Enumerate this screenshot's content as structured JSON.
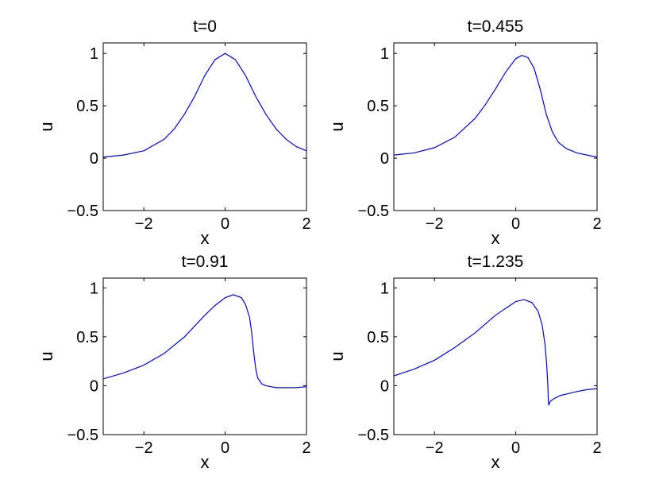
{
  "chart_data": [
    {
      "type": "line",
      "title": "t=0",
      "xlabel": "x",
      "ylabel": "u",
      "xlim": [
        -3,
        2
      ],
      "ylim": [
        -0.5,
        1.1
      ],
      "xticks": [
        -2,
        0,
        2
      ],
      "yticks": [
        -0.5,
        0,
        0.5,
        1
      ],
      "xtick_labels": [
        "−2",
        "0",
        "2"
      ],
      "ytick_labels": [
        "−0.5",
        "0",
        "0.5",
        "1"
      ],
      "grid": false,
      "series": [
        {
          "color": "#0000ff",
          "x": [
            -3.0,
            -2.5,
            -2.0,
            -1.5,
            -1.25,
            -1.0,
            -0.75,
            -0.5,
            -0.25,
            0.0,
            0.25,
            0.5,
            0.75,
            1.0,
            1.25,
            1.5,
            1.75,
            2.0
          ],
          "y": [
            0.01,
            0.03,
            0.07,
            0.18,
            0.28,
            0.42,
            0.59,
            0.79,
            0.94,
            1.0,
            0.94,
            0.79,
            0.59,
            0.42,
            0.28,
            0.18,
            0.11,
            0.07
          ]
        }
      ]
    },
    {
      "type": "line",
      "title": "t=0.455",
      "xlabel": "x",
      "ylabel": "u",
      "xlim": [
        -3,
        2
      ],
      "ylim": [
        -0.5,
        1.1
      ],
      "xticks": [
        -2,
        0,
        2
      ],
      "yticks": [
        -0.5,
        0,
        0.5,
        1
      ],
      "xtick_labels": [
        "−2",
        "0",
        "2"
      ],
      "ytick_labels": [
        "−0.5",
        "0",
        "0.5",
        "1"
      ],
      "grid": false,
      "series": [
        {
          "color": "#0000ff",
          "x": [
            -3.0,
            -2.5,
            -2.0,
            -1.5,
            -1.0,
            -0.75,
            -0.5,
            -0.25,
            0.0,
            0.15,
            0.3,
            0.45,
            0.6,
            0.75,
            0.9,
            1.05,
            1.25,
            1.5,
            1.75,
            2.0
          ],
          "y": [
            0.03,
            0.05,
            0.1,
            0.2,
            0.38,
            0.51,
            0.66,
            0.82,
            0.95,
            0.98,
            0.96,
            0.86,
            0.66,
            0.42,
            0.25,
            0.15,
            0.09,
            0.05,
            0.03,
            0.01
          ]
        }
      ]
    },
    {
      "type": "line",
      "title": "t=0.91",
      "xlabel": "x",
      "ylabel": "u",
      "xlim": [
        -3,
        2
      ],
      "ylim": [
        -0.5,
        1.1
      ],
      "xticks": [
        -2,
        0,
        2
      ],
      "yticks": [
        -0.5,
        0,
        0.5,
        1
      ],
      "xtick_labels": [
        "−2",
        "0",
        "2"
      ],
      "ytick_labels": [
        "−0.5",
        "0",
        "0.5",
        "1"
      ],
      "grid": false,
      "series": [
        {
          "color": "#0000ff",
          "x": [
            -3.0,
            -2.5,
            -2.0,
            -1.5,
            -1.0,
            -0.5,
            -0.25,
            0.0,
            0.2,
            0.4,
            0.5,
            0.6,
            0.65,
            0.7,
            0.75,
            0.8,
            0.9,
            1.0,
            1.25,
            1.5,
            1.75,
            2.0
          ],
          "y": [
            0.07,
            0.13,
            0.21,
            0.33,
            0.5,
            0.72,
            0.82,
            0.9,
            0.93,
            0.9,
            0.83,
            0.7,
            0.55,
            0.35,
            0.18,
            0.08,
            0.02,
            0.0,
            -0.02,
            -0.02,
            -0.02,
            -0.01
          ]
        }
      ]
    },
    {
      "type": "line",
      "title": "t=1.235",
      "xlabel": "x",
      "ylabel": "u",
      "xlim": [
        -3,
        2
      ],
      "ylim": [
        -0.5,
        1.1
      ],
      "xticks": [
        -2,
        0,
        2
      ],
      "yticks": [
        -0.5,
        0,
        0.5,
        1
      ],
      "xtick_labels": [
        "−2",
        "0",
        "2"
      ],
      "ytick_labels": [
        "−0.5",
        "0",
        "0.5",
        "1"
      ],
      "grid": false,
      "series": [
        {
          "color": "#0000ff",
          "x": [
            -3.0,
            -2.5,
            -2.0,
            -1.5,
            -1.0,
            -0.5,
            0.0,
            0.2,
            0.4,
            0.55,
            0.65,
            0.72,
            0.76,
            0.79,
            0.8,
            0.81,
            0.85,
            0.95,
            1.1,
            1.3,
            1.5,
            1.75,
            2.0
          ],
          "y": [
            0.1,
            0.17,
            0.26,
            0.39,
            0.54,
            0.72,
            0.86,
            0.88,
            0.85,
            0.76,
            0.62,
            0.42,
            0.22,
            0.0,
            -0.14,
            -0.2,
            -0.16,
            -0.13,
            -0.1,
            -0.08,
            -0.06,
            -0.04,
            -0.03
          ]
        }
      ]
    }
  ]
}
